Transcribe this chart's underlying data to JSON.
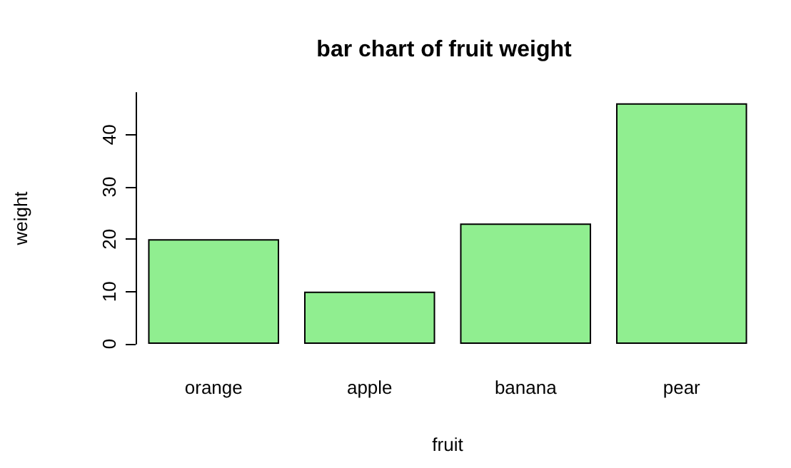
{
  "chart_data": {
    "type": "bar",
    "title": "bar chart of fruit weight",
    "xlabel": "fruit",
    "ylabel": "weight",
    "categories": [
      "orange",
      "apple",
      "banana",
      "pear"
    ],
    "values": [
      20,
      10,
      23,
      46
    ],
    "color": "#90ee90",
    "ylim": [
      0,
      48
    ],
    "yticks": [
      0,
      10,
      20,
      30,
      40
    ]
  }
}
